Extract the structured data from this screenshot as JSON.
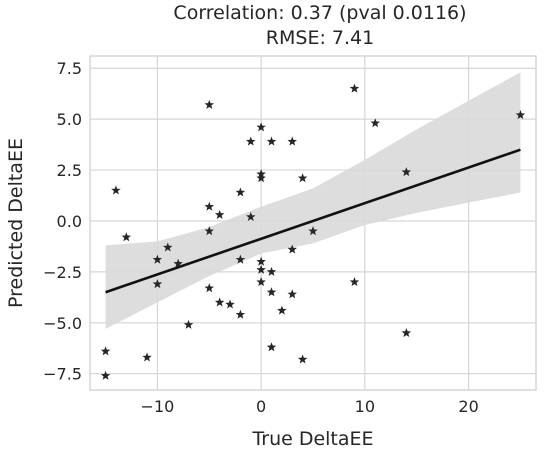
{
  "chart_data": {
    "type": "scatter",
    "title_lines": [
      "Correlation: 0.37 (pval 0.0116)",
      "RMSE: 7.41"
    ],
    "xlabel": "True DeltaEE",
    "ylabel": "Predicted DeltaEE",
    "xlim": [
      -16.5,
      26.5
    ],
    "ylim": [
      -8.3,
      8.1
    ],
    "xticks": [
      -10,
      0,
      10,
      20
    ],
    "xtick_labels": [
      "−10",
      "0",
      "10",
      "20"
    ],
    "yticks": [
      -7.5,
      -5.0,
      -2.5,
      0.0,
      2.5,
      5.0,
      7.5
    ],
    "ytick_labels": [
      "−7.5",
      "−5.0",
      "−2.5",
      "0.0",
      "2.5",
      "5.0",
      "7.5"
    ],
    "grid": true,
    "marker": "star",
    "marker_color": "#262626",
    "regression_line": {
      "x": [
        -15,
        25
      ],
      "y": [
        -3.5,
        3.5
      ],
      "color": "#111111"
    },
    "confidence_band": {
      "x": [
        -15,
        -10,
        -5,
        0,
        5,
        10,
        15,
        20,
        25
      ],
      "upper": [
        -1.2,
        -1.0,
        -0.3,
        0.7,
        1.6,
        3.0,
        4.5,
        5.9,
        7.3
      ],
      "lower": [
        -5.3,
        -4.0,
        -2.7,
        -1.6,
        -1.1,
        -0.2,
        0.4,
        0.9,
        1.4
      ],
      "color": "#d9d9d9"
    },
    "points": [
      {
        "x": -15,
        "y": -6.4
      },
      {
        "x": -15,
        "y": -7.6
      },
      {
        "x": -14,
        "y": 1.5
      },
      {
        "x": -13,
        "y": -0.8
      },
      {
        "x": -11,
        "y": -6.7
      },
      {
        "x": -10,
        "y": -1.9
      },
      {
        "x": -10,
        "y": -3.1
      },
      {
        "x": -9,
        "y": -1.3
      },
      {
        "x": -8,
        "y": -2.1
      },
      {
        "x": -7,
        "y": -5.1
      },
      {
        "x": -5,
        "y": 5.7
      },
      {
        "x": -5,
        "y": 0.7
      },
      {
        "x": -5,
        "y": -0.5
      },
      {
        "x": -5,
        "y": -3.3
      },
      {
        "x": -4,
        "y": 0.3
      },
      {
        "x": -4,
        "y": -4.0
      },
      {
        "x": -3,
        "y": -4.1
      },
      {
        "x": -2,
        "y": 1.4
      },
      {
        "x": -2,
        "y": -1.9
      },
      {
        "x": -2,
        "y": -4.6
      },
      {
        "x": -1,
        "y": 3.9
      },
      {
        "x": -1,
        "y": 0.2
      },
      {
        "x": 0,
        "y": 4.6
      },
      {
        "x": 0,
        "y": 2.3
      },
      {
        "x": 0,
        "y": 2.1
      },
      {
        "x": 0,
        "y": -2.0
      },
      {
        "x": 0,
        "y": -2.4
      },
      {
        "x": 0,
        "y": -3.0
      },
      {
        "x": 1,
        "y": 3.9
      },
      {
        "x": 1,
        "y": -2.5
      },
      {
        "x": 1,
        "y": -3.5
      },
      {
        "x": 1,
        "y": -6.2
      },
      {
        "x": 2,
        "y": -4.4
      },
      {
        "x": 3,
        "y": 3.9
      },
      {
        "x": 3,
        "y": -1.4
      },
      {
        "x": 3,
        "y": -3.6
      },
      {
        "x": 4,
        "y": 2.1
      },
      {
        "x": 4,
        "y": -6.8
      },
      {
        "x": 5,
        "y": -0.5
      },
      {
        "x": 9,
        "y": 6.5
      },
      {
        "x": 9,
        "y": -3.0
      },
      {
        "x": 11,
        "y": 4.8
      },
      {
        "x": 14,
        "y": 2.4
      },
      {
        "x": 14,
        "y": -5.5
      },
      {
        "x": 25,
        "y": 5.2
      }
    ]
  }
}
